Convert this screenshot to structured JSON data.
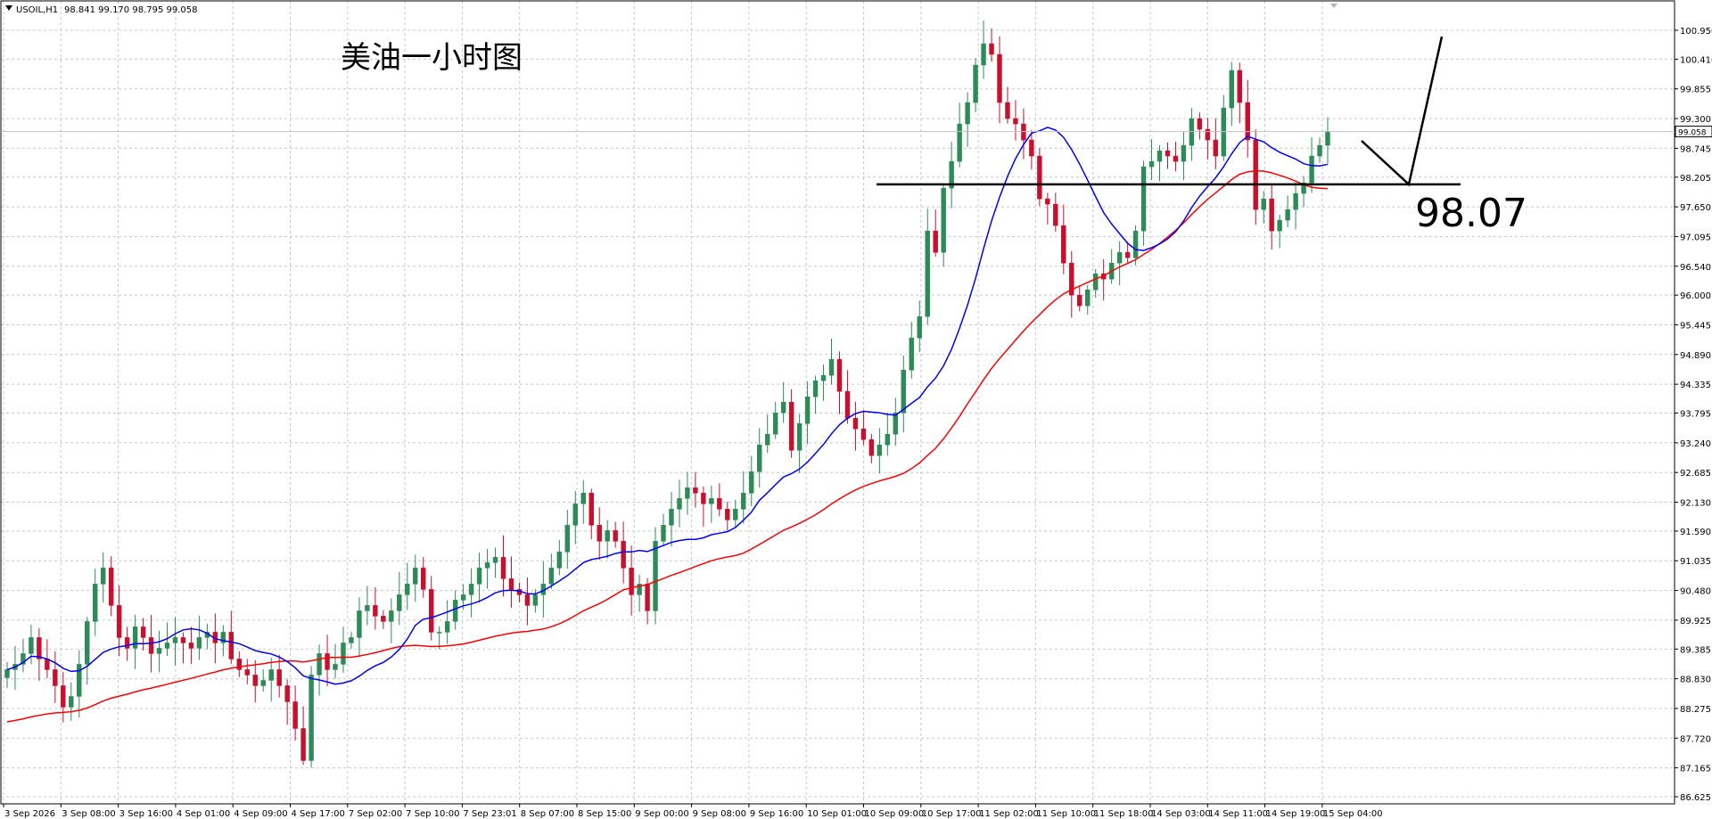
{
  "header": {
    "symbol": "USOIL,H1",
    "ohlc": "98.841 99.170 98.795 99.058"
  },
  "annotation": {
    "title": "美油一小时图",
    "level_label": "98.07",
    "level_value": 98.07
  },
  "current_price": {
    "value": 99.058,
    "label": "99.058",
    "color": "#000000"
  },
  "colors": {
    "bull": "#2e8b57",
    "bear": "#c8102e",
    "ma_fast": "#0000ff",
    "ma_slow": "#ff0000",
    "grid": "#c8c8c8",
    "axis": "#000000"
  },
  "chart_data": {
    "type": "candlestick",
    "title": "美油一小时图",
    "symbol": "USOIL,H1",
    "ylim": [
      86.625,
      101.2
    ],
    "grid": true,
    "y_ticks": [
      "100.950",
      "100.410",
      "99.855",
      "99.300",
      "98.745",
      "98.205",
      "97.650",
      "97.095",
      "96.540",
      "96.000",
      "95.445",
      "94.890",
      "94.335",
      "93.795",
      "93.240",
      "92.685",
      "92.130",
      "91.590",
      "91.035",
      "90.480",
      "89.925",
      "89.385",
      "88.830",
      "88.275",
      "87.720",
      "87.165",
      "86.625"
    ],
    "x_labels": [
      "3 Sep 2026",
      "3 Sep 08:00",
      "3 Sep 16:00",
      "4 Sep 01:00",
      "4 Sep 09:00",
      "4 Sep 17:00",
      "7 Sep 02:00",
      "7 Sep 10:00",
      "7 Sep 23:01",
      "8 Sep 07:00",
      "8 Sep 15:00",
      "9 Sep 00:00",
      "9 Sep 08:00",
      "9 Sep 16:00",
      "10 Sep 01:00",
      "10 Sep 09:00",
      "10 Sep 17:00",
      "11 Sep 02:00",
      "11 Sep 10:00",
      "11 Sep 18:00",
      "14 Sep 03:00",
      "14 Sep 11:00",
      "14 Sep 19:00",
      "15 Sep 04:00"
    ],
    "candles_close": [
      89.0,
      89.1,
      89.3,
      89.6,
      89.2,
      89.0,
      88.7,
      88.3,
      88.5,
      89.1,
      89.9,
      90.6,
      90.9,
      90.2,
      89.6,
      89.4,
      89.8,
      89.6,
      89.3,
      89.4,
      89.5,
      89.6,
      89.5,
      89.4,
      89.6,
      89.7,
      89.5,
      89.7,
      89.2,
      89.0,
      88.9,
      88.7,
      88.8,
      89.0,
      88.7,
      88.4,
      87.9,
      87.3,
      88.9,
      89.3,
      89.0,
      89.1,
      89.5,
      89.6,
      90.1,
      90.2,
      90.0,
      89.9,
      90.1,
      90.4,
      90.6,
      90.9,
      90.5,
      89.7,
      89.7,
      89.9,
      90.3,
      90.4,
      90.6,
      90.9,
      91.0,
      91.1,
      90.7,
      90.5,
      90.4,
      90.2,
      90.4,
      90.6,
      90.9,
      91.2,
      91.7,
      92.1,
      92.3,
      91.7,
      91.4,
      91.6,
      91.4,
      90.9,
      90.4,
      90.6,
      90.1,
      91.4,
      91.7,
      92.0,
      92.2,
      92.4,
      92.3,
      92.1,
      92.2,
      92.0,
      91.8,
      92.0,
      92.3,
      92.7,
      93.2,
      93.4,
      93.8,
      94.0,
      93.1,
      93.6,
      94.1,
      94.4,
      94.5,
      94.8,
      94.2,
      93.7,
      93.5,
      93.3,
      93.0,
      93.2,
      93.4,
      93.8,
      94.6,
      95.2,
      95.6,
      97.2,
      96.8,
      98.0,
      98.5,
      99.2,
      99.6,
      100.3,
      100.7,
      100.5,
      99.6,
      99.3,
      99.2,
      98.9,
      98.6,
      97.8,
      97.7,
      97.3,
      96.6,
      96.0,
      95.8,
      96.1,
      96.4,
      96.3,
      96.6,
      96.8,
      96.7,
      97.2,
      98.4,
      98.5,
      98.7,
      98.6,
      98.5,
      98.8,
      99.3,
      99.1,
      98.9,
      98.6,
      99.5,
      100.2,
      99.6,
      98.9,
      97.6,
      97.8,
      97.2,
      97.4,
      97.6,
      97.9,
      98.1,
      98.6,
      98.8,
      99.06
    ],
    "ma_fast_desc": "blue moving average",
    "ma_slow_desc": "red moving average"
  }
}
